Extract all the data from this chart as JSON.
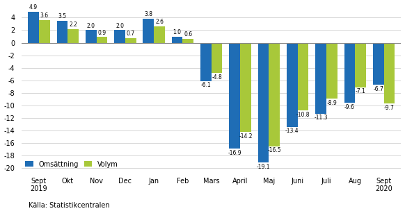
{
  "months": [
    "Sept\n2019",
    "Okt",
    "Nov",
    "Dec",
    "Jan",
    "Feb",
    "Mars",
    "April",
    "Maj",
    "Juni",
    "Juli",
    "Aug",
    "Sept\n2020"
  ],
  "omsattning": [
    4.9,
    3.5,
    2.0,
    2.0,
    3.8,
    1.0,
    -6.1,
    -16.9,
    -19.1,
    -13.4,
    -11.3,
    -9.6,
    -6.7
  ],
  "volym": [
    3.6,
    2.2,
    0.9,
    0.7,
    2.6,
    0.6,
    -4.8,
    -14.2,
    -16.5,
    -10.8,
    -8.9,
    -7.1,
    -9.7
  ],
  "bar_color_oms": "#1f6db5",
  "bar_color_vol": "#a8c83a",
  "legend_oms": "Omsättning",
  "legend_vol": "Volym",
  "ylim": [
    -20.5,
    6.2
  ],
  "yticks": [
    -20,
    -18,
    -16,
    -14,
    -12,
    -10,
    -8,
    -6,
    -4,
    -2,
    0,
    2,
    4
  ],
  "source": "Källa: Statistikcentralen",
  "background_color": "#ffffff",
  "grid_color": "#d0d0d0"
}
